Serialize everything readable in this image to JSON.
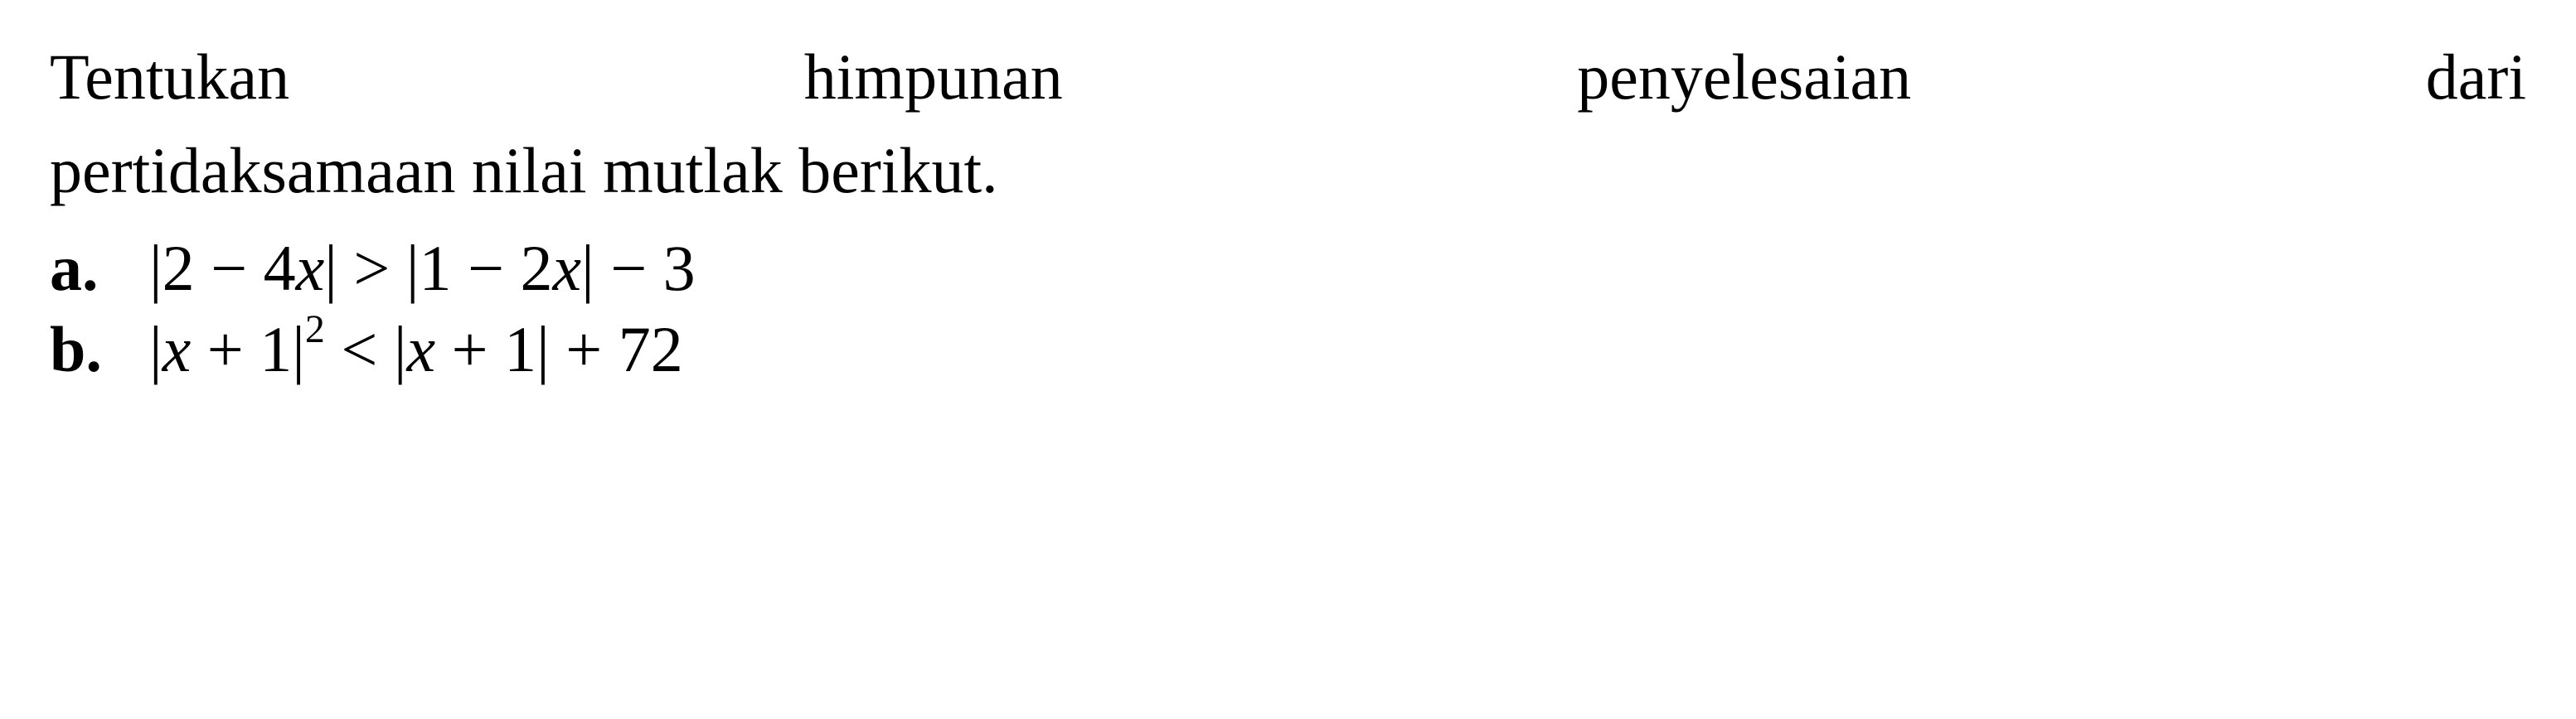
{
  "instruction": {
    "line1": "Tentukan himpunan penyelesaian dari",
    "line2": "pertidaksamaan nilai mutlak berikut."
  },
  "items": [
    {
      "label": "a.",
      "prefix": "|2 − 4",
      "var1": "x",
      "mid1": "| > |1 − 2",
      "var2": "x",
      "suffix": "| − 3"
    },
    {
      "label": "b.",
      "prefix": "|",
      "var1": "x",
      "mid1": " + 1|",
      "exp": "2",
      "mid2": " < |",
      "var2": "x",
      "suffix": " + 1| + 72"
    }
  ],
  "style": {
    "text_color": "#000000",
    "background_color": "#ffffff",
    "font_size_body": 78,
    "font_size_super": 48,
    "font_family": "Times New Roman",
    "label_weight": "bold",
    "line_height": 1.35
  }
}
